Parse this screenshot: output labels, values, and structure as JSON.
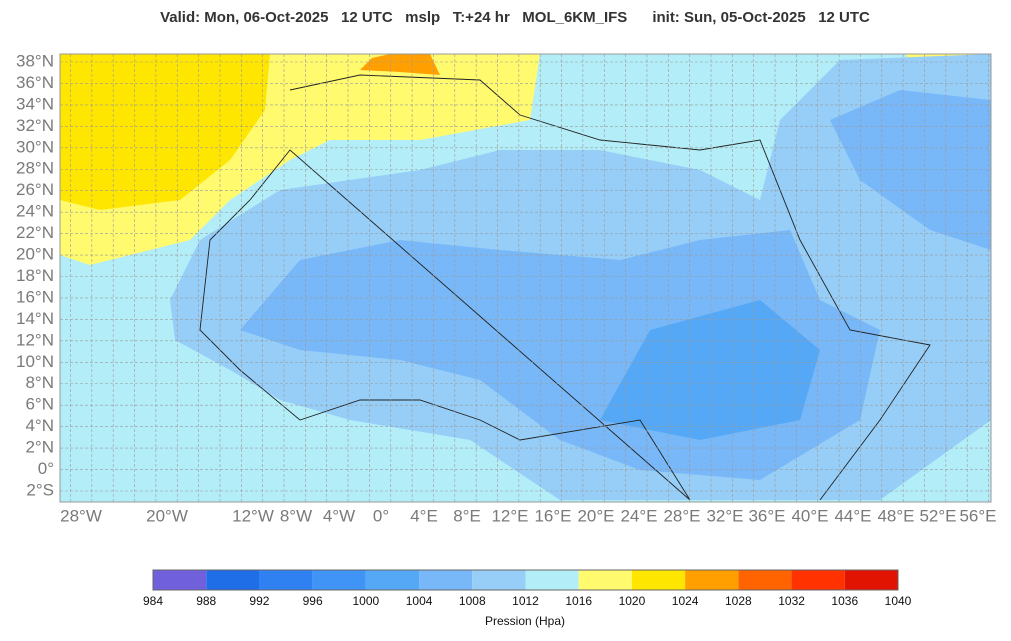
{
  "title": "Valid: Mon, 06-Oct-2025   12 UTC   mslp   T:+24 hr   MOL_6KM_IFS      init: Sun, 05-Oct-2025   12 UTC",
  "map": {
    "lat_labels": [
      "38°N",
      "36°N",
      "34°N",
      "32°N",
      "30°N",
      "28°N",
      "26°N",
      "24°N",
      "22°N",
      "20°N",
      "18°N",
      "16°N",
      "14°N",
      "12°N",
      "10°N",
      "8°N",
      "6°N",
      "4°N",
      "2°N",
      "0°",
      "2°S"
    ],
    "lon_labels": [
      "28°W",
      "20°W",
      "12°W",
      "8°W",
      "4°W",
      "0°",
      "4°E",
      "8°E",
      "12°E",
      "16°E",
      "20°E",
      "24°E",
      "28°E",
      "32°E",
      "36°E",
      "40°E",
      "44°E",
      "48°E",
      "52°E",
      "56°E"
    ]
  },
  "colorbar": {
    "ticks": [
      984,
      988,
      992,
      996,
      1000,
      1004,
      1008,
      1012,
      1016,
      1020,
      1024,
      1028,
      1032,
      1036,
      1040
    ],
    "colors": [
      "#7060dc",
      "#1f6ee8",
      "#2f80f0",
      "#3f94f5",
      "#55a8f5",
      "#78b8f8",
      "#96cef8",
      "#b3eef8",
      "#fffa6e",
      "#ffe600",
      "#ffa000",
      "#ff6400",
      "#ff3200",
      "#e01400"
    ],
    "label": "Pression (Hpa)"
  }
}
